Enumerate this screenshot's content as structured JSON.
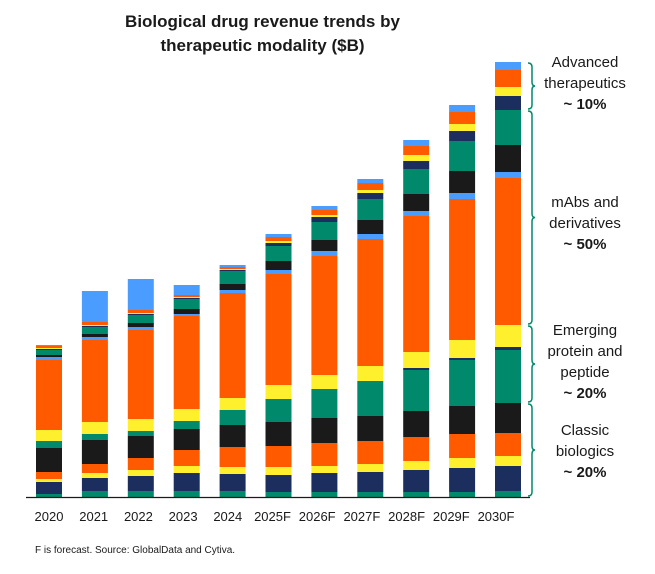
{
  "chart_data": {
    "type": "stacked-bar",
    "title": "Biological drug revenue trends by therapeutic modality ($B)",
    "title_lines": [
      "Biological drug revenue trends by",
      "therapeutic modality ($B)"
    ],
    "xlabel": "",
    "ylabel": "",
    "y_axis_shown": false,
    "grid": false,
    "value_note": "segment values estimated relative to each other; no y-axis printed",
    "categories": [
      "2020",
      "2021",
      "2022",
      "2023",
      "2024",
      "2025F",
      "2026F",
      "2027F",
      "2028F",
      "2029F",
      "2030F"
    ],
    "segment_colors": [
      "#00896b",
      "#1b2e5e",
      "#fff02e",
      "#ff5a00",
      "#1a1a1a",
      "#00896b",
      "#1b2e5e",
      "#fff02e",
      "#ff5a00",
      "#4a9dff",
      "#1a1a1a",
      "#00896b",
      "#1b2e5e",
      "#fff02e",
      "#ff5a00",
      "#4a9dff"
    ],
    "stacks": [
      [
        3,
        12,
        3,
        7,
        24,
        7,
        0,
        11,
        70,
        3,
        2,
        5,
        1,
        1,
        2,
        1
      ],
      [
        6,
        13,
        5,
        9,
        24,
        6,
        0,
        12,
        82,
        3,
        3,
        7,
        1,
        1,
        3,
        31
      ],
      [
        6,
        15,
        6,
        12,
        22,
        5,
        0,
        12,
        89,
        3,
        4,
        8,
        1,
        1,
        3,
        31
      ],
      [
        6,
        18,
        7,
        16,
        21,
        8,
        0,
        12,
        93,
        2,
        5,
        10,
        1,
        1,
        2,
        10
      ],
      [
        6,
        17,
        7,
        20,
        22,
        15,
        0,
        12,
        105,
        3,
        6,
        13,
        1,
        1,
        2,
        2
      ],
      [
        5,
        17,
        8,
        21,
        24,
        23,
        0,
        14,
        111,
        4,
        9,
        15,
        3,
        2,
        4,
        3
      ],
      [
        5,
        19,
        7,
        23,
        25,
        29,
        0,
        14,
        119,
        5,
        11,
        18,
        5,
        2,
        5,
        4
      ],
      [
        5,
        20,
        8,
        23,
        25,
        35,
        0,
        15,
        127,
        5,
        14,
        21,
        6,
        3,
        7,
        4
      ],
      [
        5,
        22,
        9,
        24,
        26,
        41,
        2,
        16,
        136,
        5,
        17,
        25,
        8,
        6,
        9,
        6
      ],
      [
        5,
        24,
        10,
        24,
        28,
        46,
        2,
        18,
        141,
        6,
        22,
        30,
        10,
        7,
        12,
        7
      ],
      [
        6,
        25,
        10,
        23,
        30,
        53,
        3,
        22,
        147,
        6,
        27,
        35,
        14,
        9,
        17,
        8
      ]
    ],
    "bracket_color": "#00896b",
    "groups": [
      {
        "label_lines": [
          "Advanced",
          "therapeutics"
        ],
        "share": "~ 10%",
        "segments_from": 12,
        "segments_to": 15
      },
      {
        "label_lines": [
          "mAbs and",
          "derivatives"
        ],
        "share": "~ 50%",
        "segments_from": 8,
        "segments_to": 11
      },
      {
        "label_lines": [
          "Emerging",
          "protein and",
          "peptide"
        ],
        "share": "~ 20%",
        "segments_from": 5,
        "segments_to": 7
      },
      {
        "label_lines": [
          "Classic",
          "biologics"
        ],
        "share": "~ 20%",
        "segments_from": 0,
        "segments_to": 4
      }
    ]
  },
  "footnote": "F is forecast. Source: GlobalData and Cytiva."
}
